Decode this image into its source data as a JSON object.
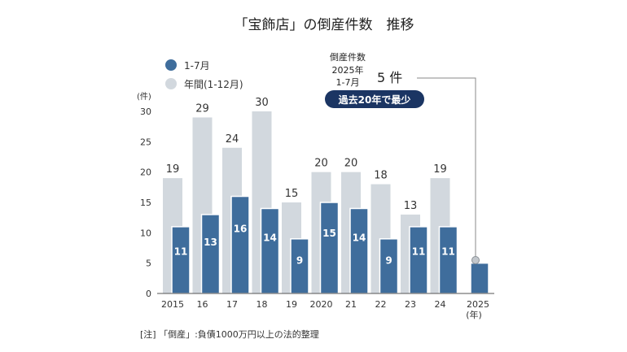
{
  "chart_data": {
    "type": "bar",
    "title": "「宝飾店」の倒産件数　推移",
    "categories": [
      "2015",
      "16",
      "17",
      "18",
      "19",
      "2020",
      "21",
      "22",
      "23",
      "24",
      "2025"
    ],
    "x_unit": "(年)",
    "y_unit": "(件)",
    "ylim": [
      0,
      30
    ],
    "yticks": [
      "0",
      "5",
      "10",
      "15",
      "20",
      "25",
      "30"
    ],
    "series": [
      {
        "name": "年間(1-12月)",
        "values": [
          19,
          29,
          24,
          30,
          15,
          20,
          20,
          18,
          13,
          19,
          null
        ],
        "color": "#d2d8de"
      },
      {
        "name": "1-7月",
        "values": [
          11,
          13,
          16,
          14,
          9,
          15,
          14,
          9,
          11,
          11,
          5
        ],
        "color": "#3f6d9c"
      }
    ],
    "legend_position": "top-left",
    "annotation": {
      "line1": "倒産件数",
      "line2": "2025年",
      "line3": "1-7月",
      "value": "5 件",
      "badge": "過去20年で最少",
      "badge_color": "#1b3563"
    }
  },
  "note": "[注] 「倒産」:負債1000万円以上の法的整理"
}
